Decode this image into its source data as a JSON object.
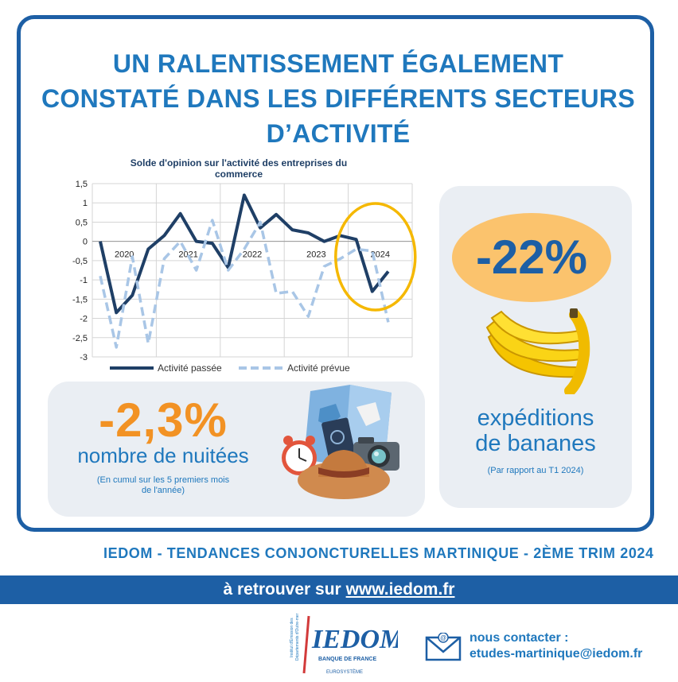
{
  "title": {
    "line1": "UN RALENTISSEMENT ÉGALEMENT",
    "line2": "CONSTATÉ DANS LES DIFFÉRENTS SECTEURS",
    "line3": "D’ACTIVITÉ"
  },
  "chart_data": {
    "type": "line",
    "title_line1": "Solde d'opinion sur l'activité des entreprises du",
    "title_line2": "commerce",
    "ylim": [
      -3,
      1.5
    ],
    "yticks": [
      "1,5",
      "1",
      "0,5",
      "0",
      "-0,5",
      "-1",
      "-1,5",
      "-2",
      "-2,5",
      "-3"
    ],
    "year_labels": [
      "2020",
      "2021",
      "2022",
      "2023",
      "2024"
    ],
    "legend_position": "bottom",
    "grid": true,
    "x": [
      2019.75,
      2020.0,
      2020.25,
      2020.5,
      2020.75,
      2021.0,
      2021.25,
      2021.5,
      2021.75,
      2022.0,
      2022.25,
      2022.5,
      2022.75,
      2023.0,
      2023.25,
      2023.5,
      2023.75,
      2024.0,
      2024.25
    ],
    "series": [
      {
        "name": "Activité passée",
        "style": "solid",
        "color": "#1f3f66",
        "values": [
          0.0,
          -1.85,
          -1.4,
          -0.2,
          0.15,
          0.72,
          0.0,
          -0.05,
          -0.68,
          1.2,
          0.35,
          0.7,
          0.3,
          0.22,
          0.0,
          0.15,
          0.05,
          -1.3,
          -0.78
        ]
      },
      {
        "name": "Activité prévue",
        "style": "dashed",
        "color": "#a9c6e6",
        "values": [
          -0.9,
          -2.75,
          -0.4,
          -2.65,
          -0.45,
          0.0,
          -0.75,
          0.55,
          -0.75,
          -0.2,
          0.5,
          -1.35,
          -1.3,
          -1.95,
          -0.65,
          -0.45,
          -0.2,
          -0.25,
          -2.1
        ]
      }
    ],
    "highlight": {
      "label": "2024",
      "color": "#f5b800"
    }
  },
  "nuitees": {
    "value": "-2,3%",
    "label": "nombre de nuitées",
    "note_line1": "(En cumul sur les 5 premiers mois",
    "note_line2": "de l'année)"
  },
  "bananes": {
    "value": "-22%",
    "label_line1": "expéditions",
    "label_line2": "de bananes",
    "note": "(Par rapport au T1 2024)"
  },
  "footer": {
    "title": "IEDOM - TENDANCES CONJONCTURELLES MARTINIQUE - 2ÈME TRIM 2024",
    "band_prefix": "à retrouver sur",
    "band_url": "www.iedom.fr",
    "contact_label": "nous contacter :",
    "contact_email": "etudes-martinique@iedom.fr"
  },
  "logo": {
    "name": "IEDOM",
    "sub1": "BANQUE DE FRANCE",
    "sub2": "EUROSYSTÈME",
    "vertical1": "Institut d'Émission des",
    "vertical2": "Départements d'Outre-mer"
  },
  "colors": {
    "primary": "#1f78bd",
    "dark_blue": "#1d5fa5",
    "orange": "#f29224",
    "yellow_ellipse": "#fbc36d",
    "card_bg": "#eaeef3"
  }
}
